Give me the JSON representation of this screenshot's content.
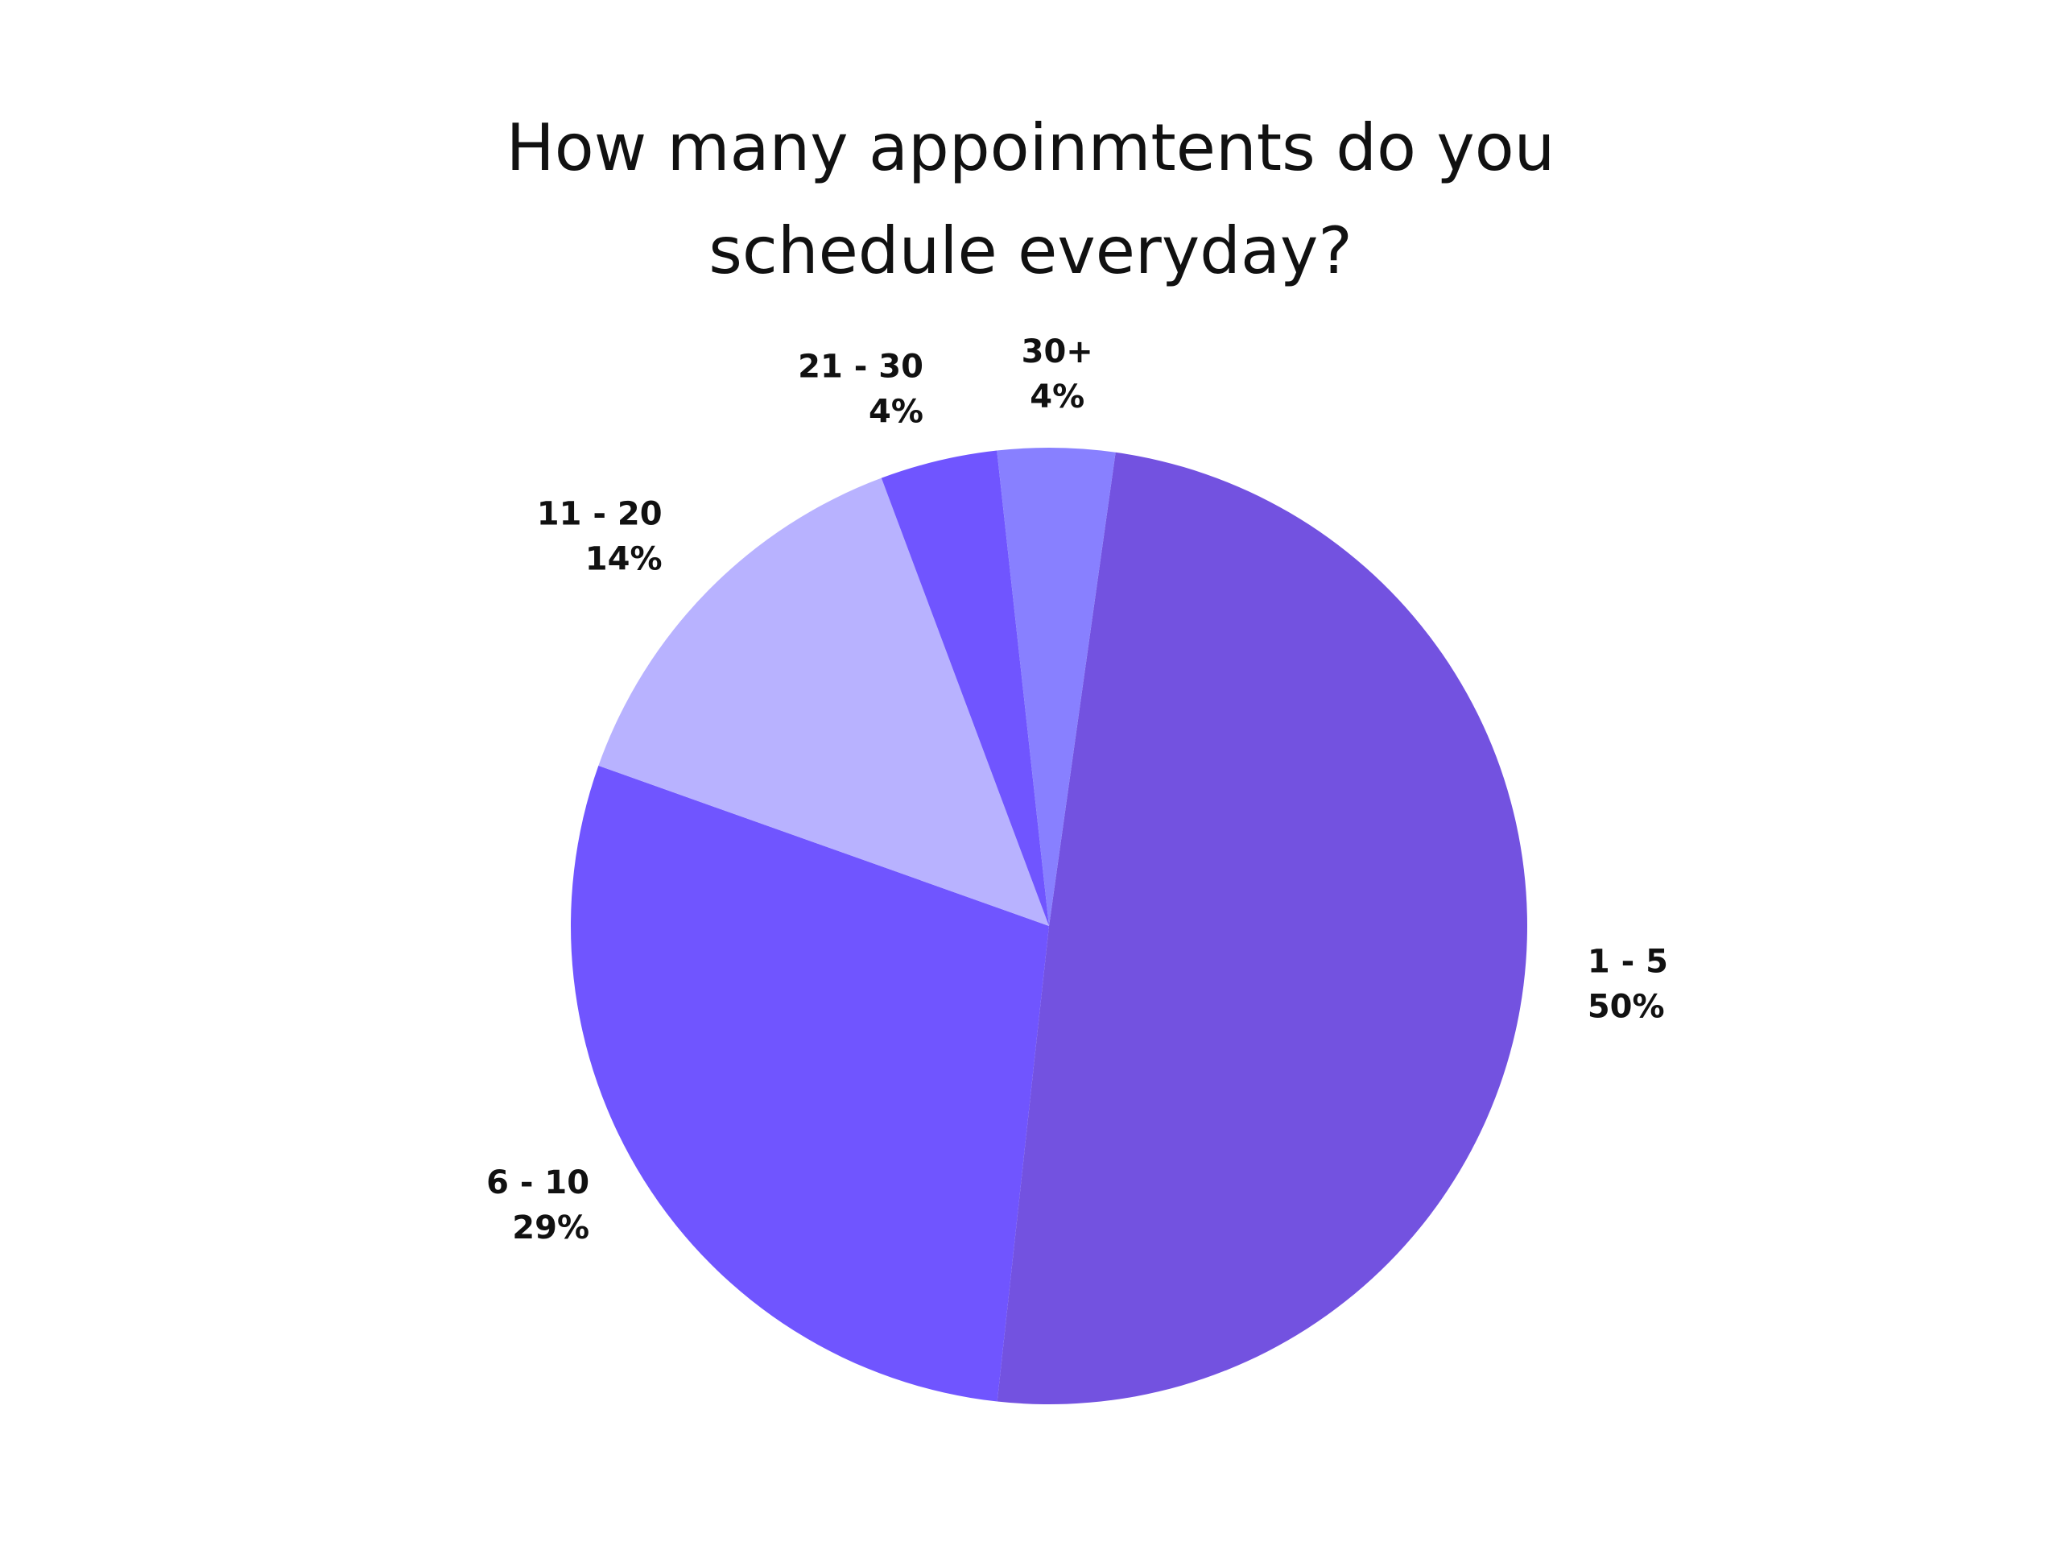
{
  "chart_data": {
    "type": "pie",
    "title": "How many appoinmtents do you schedule everyday?",
    "categories": [
      "1 - 5",
      "6 - 10",
      "11 - 20",
      "21 - 30",
      "30+"
    ],
    "values": [
      50,
      29,
      14,
      4,
      4
    ],
    "value_labels": [
      "50%",
      "29%",
      "14%",
      "4%",
      "4%"
    ],
    "colors": [
      "#7352e0",
      "#7055ff",
      "#b8b2ff",
      "#7055ff",
      "#8880ff"
    ]
  }
}
